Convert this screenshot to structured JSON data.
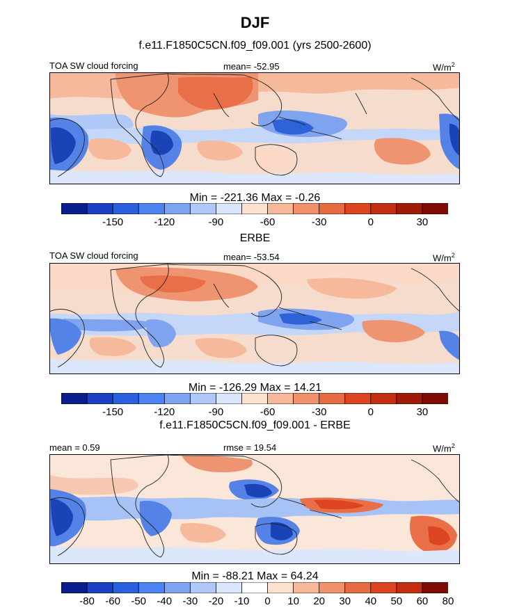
{
  "title": "DJF",
  "panels": [
    {
      "title": "f.e11.F1850C5CN.f09_f09.001 (yrs 2500-2600)",
      "left_label": "TOA SW cloud forcing",
      "center_label": "mean= -52.95",
      "units": "W/m",
      "units_sup": "2",
      "stats": "Min = -221.36 Max =  -0.26",
      "colorbar": {
        "colors": [
          "#0a1d8c",
          "#1a3fc4",
          "#2a5fe0",
          "#4d82f0",
          "#7ea3f3",
          "#b0c8f7",
          "#d9e6fb",
          "#fde2cf",
          "#f8b99a",
          "#f1916b",
          "#e86a43",
          "#dd4520",
          "#c32d10",
          "#a01a08",
          "#7e0c05"
        ],
        "labels": [
          "-150",
          "-120",
          "-90",
          "-60",
          "-30",
          "0",
          "30"
        ],
        "label_boundaries": [
          2,
          4,
          6,
          8,
          10,
          12,
          14
        ]
      },
      "map": {
        "palette": [
          "#dde7fb",
          "#c4d7f8",
          "#a7c2f4",
          "#7fa3ee",
          "#5482e6",
          "#2e62d6",
          "#1a43b8",
          "#fbd9c6",
          "#f6b99b",
          "#ef9470",
          "#e86f48",
          "#ddd0f8"
        ],
        "background": "#f3ddd2"
      }
    },
    {
      "title": "ERBE",
      "left_label": "TOA SW cloud forcing",
      "center_label": "mean= -53.54",
      "units": "W/m",
      "units_sup": "2",
      "stats": "Min = -126.29 Max =  14.21",
      "colorbar": {
        "colors": [
          "#0a1d8c",
          "#1a3fc4",
          "#2a5fe0",
          "#4d82f0",
          "#7ea3f3",
          "#b0c8f7",
          "#d9e6fb",
          "#fde2cf",
          "#f8b99a",
          "#f1916b",
          "#e86a43",
          "#dd4520",
          "#c32d10",
          "#a01a08",
          "#7e0c05"
        ],
        "labels": [
          "-150",
          "-120",
          "-90",
          "-60",
          "-30",
          "0",
          "30"
        ],
        "label_boundaries": [
          2,
          4,
          6,
          8,
          10,
          12,
          14
        ]
      },
      "map": {
        "background": "#f5ddd0"
      }
    },
    {
      "title": "f.e11.F1850C5CN.f09_f09.001 - ERBE",
      "left_label": "mean =   0.59",
      "center_label": "rmse =  19.54",
      "units": "W/m",
      "units_sup": "2",
      "stats": "Min = -88.21 Max =  64.24",
      "colorbar": {
        "colors": [
          "#0a1d8c",
          "#1a3fc4",
          "#2a5fe0",
          "#4d82f0",
          "#7ea3f3",
          "#b0c8f7",
          "#d9e6fb",
          "#ffffff",
          "#fde2cf",
          "#f8b99a",
          "#f1916b",
          "#e86a43",
          "#dd4520",
          "#c32d10",
          "#7e0c05"
        ],
        "labels": [
          "-80",
          "-60",
          "-50",
          "-40",
          "-30",
          "-20",
          "-10",
          "0",
          "10",
          "20",
          "30",
          "40",
          "50",
          "60",
          "80"
        ],
        "label_boundaries": [
          1,
          2,
          3,
          4,
          5,
          6,
          7,
          8,
          9,
          10,
          11,
          12,
          13,
          14,
          15
        ]
      },
      "map": {
        "background": "#faece4"
      }
    }
  ]
}
